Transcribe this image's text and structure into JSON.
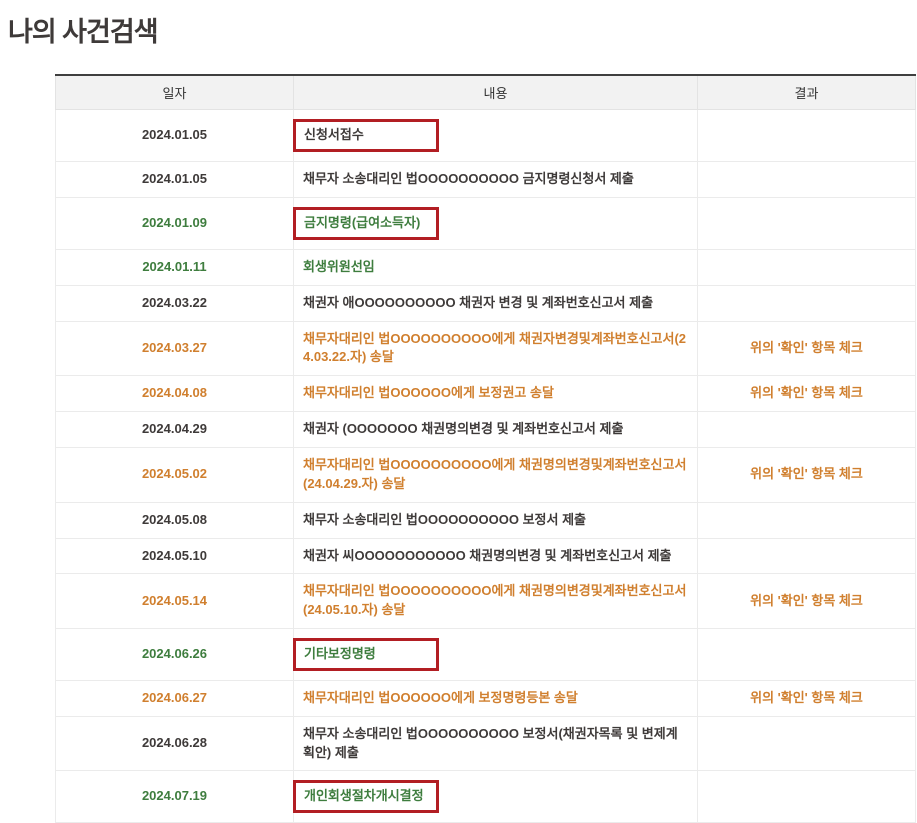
{
  "page": {
    "title": "나의 사건검색"
  },
  "colors": {
    "dark": "#3e3a39",
    "green": "#3e7d3e",
    "orange": "#d07f2e",
    "highlight_box_border": "#b21e23",
    "header_bg": "#f2f2f2",
    "table_top_border": "#3f3f3f"
  },
  "table": {
    "columns": [
      {
        "key": "date",
        "label": "일자"
      },
      {
        "key": "content",
        "label": "내용"
      },
      {
        "key": "result",
        "label": "결과"
      }
    ],
    "rows": [
      {
        "date": "2024.01.05",
        "content": "신청서접수",
        "result": "",
        "color": "dark",
        "boxed": true
      },
      {
        "date": "2024.01.05",
        "content": "채무자 소송대리인 법OOOOOOOOOO 금지명령신청서 제출",
        "result": "",
        "color": "dark",
        "boxed": false
      },
      {
        "date": "2024.01.09",
        "content": "금지명령(급여소득자)",
        "result": "",
        "color": "green",
        "boxed": true
      },
      {
        "date": "2024.01.11",
        "content": "회생위원선임",
        "result": "",
        "color": "green",
        "boxed": false
      },
      {
        "date": "2024.03.22",
        "content": "채권자 애OOOOOOOOOO 채권자 변경 및 계좌번호신고서 제출",
        "result": "",
        "color": "dark",
        "boxed": false
      },
      {
        "date": "2024.03.27",
        "content": "채무자대리인 법OOOOOOOOOO에게 채권자변경및계좌번호신고서(24.03.22.자) 송달",
        "result": "위의 '확인' 항목 체크",
        "color": "orange",
        "boxed": false
      },
      {
        "date": "2024.04.08",
        "content": "채무자대리인 법OOOOOO에게 보정권고 송달",
        "result": "위의 '확인' 항목 체크",
        "color": "orange",
        "boxed": false
      },
      {
        "date": "2024.04.29",
        "content": "채권자 (OOOOOOO 채권명의변경 및 계좌번호신고서 제출",
        "result": "",
        "color": "dark",
        "boxed": false
      },
      {
        "date": "2024.05.02",
        "content": "채무자대리인 법OOOOOOOOOO에게 채권명의변경및계좌번호신고서(24.04.29.자) 송달",
        "result": "위의 '확인' 항목 체크",
        "color": "orange",
        "boxed": false
      },
      {
        "date": "2024.05.08",
        "content": "채무자 소송대리인 법OOOOOOOOOO 보정서 제출",
        "result": "",
        "color": "dark",
        "boxed": false
      },
      {
        "date": "2024.05.10",
        "content": "채권자 씨OOOOOOOOOOO 채권명의변경 및 계좌번호신고서 제출",
        "result": "",
        "color": "dark",
        "boxed": false
      },
      {
        "date": "2024.05.14",
        "content": "채무자대리인 법OOOOOOOOOO에게 채권명의변경및계좌번호신고서(24.05.10.자) 송달",
        "result": "위의 '확인' 항목 체크",
        "color": "orange",
        "boxed": false
      },
      {
        "date": "2024.06.26",
        "content": "기타보정명령",
        "result": "",
        "color": "green",
        "boxed": true
      },
      {
        "date": "2024.06.27",
        "content": "채무자대리인 법OOOOOO에게 보정명령등본 송달",
        "result": "위의 '확인' 항목 체크",
        "color": "orange",
        "boxed": false
      },
      {
        "date": "2024.06.28",
        "content": "채무자 소송대리인 법OOOOOOOOOO 보정서(채권자목록 및 변제계획안) 제출",
        "result": "",
        "color": "dark",
        "boxed": false
      },
      {
        "date": "2024.07.19",
        "content": "개인회생절차개시결정",
        "result": "",
        "color": "green",
        "boxed": true
      }
    ]
  }
}
